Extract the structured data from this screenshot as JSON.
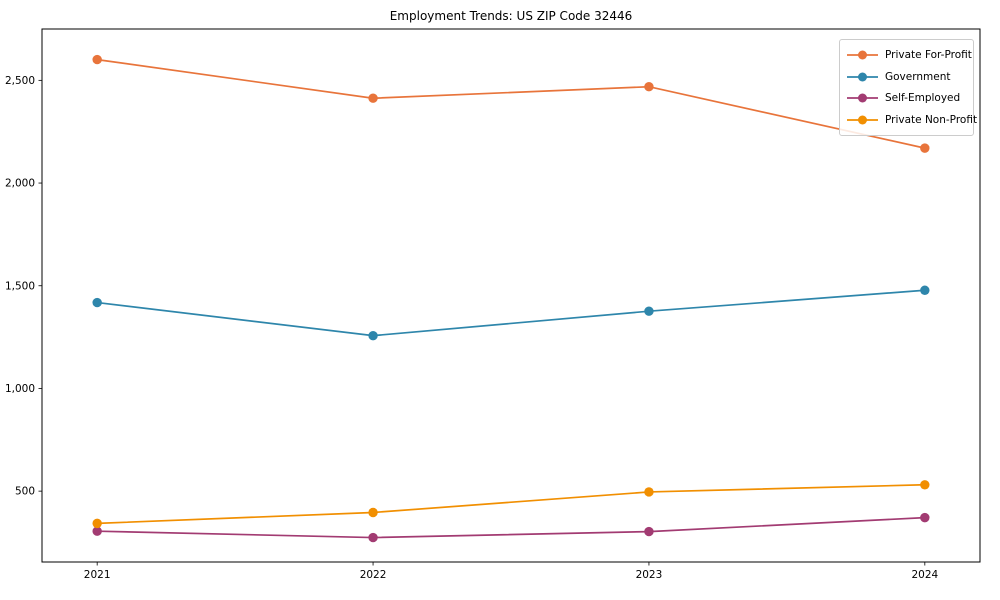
{
  "chart_data": {
    "type": "line",
    "title": "Employment Trends: US ZIP Code 32446",
    "xlabel": "",
    "ylabel": "",
    "x": [
      2021,
      2022,
      2023,
      2024
    ],
    "x_tick_labels": [
      "2021",
      "2022",
      "2023",
      "2024"
    ],
    "y_ticks": [
      500,
      1000,
      1500,
      2000,
      2500
    ],
    "y_tick_labels": [
      "500",
      "1,000",
      "1,500",
      "2,000",
      "2,500"
    ],
    "xlim": [
      2020.8,
      2024.2
    ],
    "ylim": [
      155,
      2750
    ],
    "grid": false,
    "legend_position": "upper right",
    "marker": "circle",
    "axis_color": "#000000",
    "series": [
      {
        "name": "Private For-Profit",
        "color": "#E8743B",
        "values": [
          2601,
          2413,
          2469,
          2170
        ]
      },
      {
        "name": "Government",
        "color": "#2E86AB",
        "values": [
          1418,
          1257,
          1376,
          1478
        ]
      },
      {
        "name": "Self-Employed",
        "color": "#A23B72",
        "values": [
          305,
          274,
          303,
          371
        ]
      },
      {
        "name": "Private Non-Profit",
        "color": "#F18F01",
        "values": [
          343,
          396,
          496,
          531
        ]
      }
    ]
  }
}
